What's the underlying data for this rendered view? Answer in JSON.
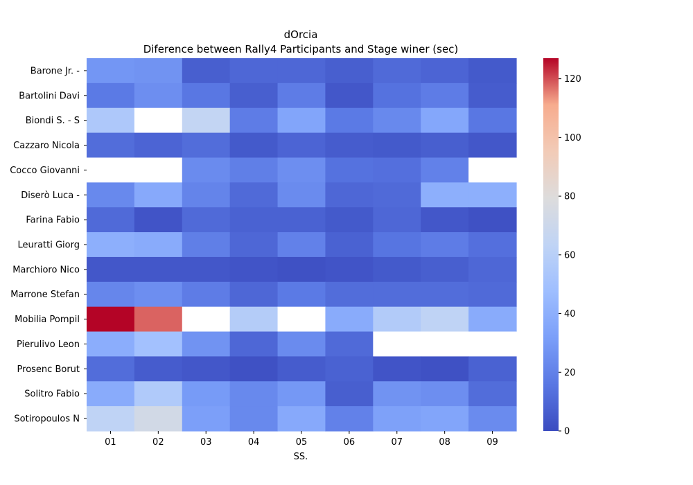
{
  "chart_data": {
    "type": "heatmap",
    "title": "dOrcia",
    "subtitle": "Diference between Rally4 Participants and Stage winer (sec)",
    "xlabel": "SS.",
    "ylabel": "",
    "columns": [
      "01",
      "02",
      "03",
      "04",
      "05",
      "06",
      "07",
      "08",
      "09"
    ],
    "rows": [
      "Barone Jr.  -",
      "Bartolini Davi",
      "Biondi S.  - S",
      "Cazzaro Nicola",
      "Cocco Giovanni",
      "Diserò Luca  -",
      "Farina Fabio  ",
      "Leuratti Giorg",
      "Marchioro Nico",
      "Marrone Stefan",
      "Mobilia Pompil",
      "Pierulivo Leon",
      "Prosenc Borut ",
      "Solitro Fabio ",
      "Sotiropoulos N"
    ],
    "values": [
      [
        28,
        27,
        7,
        10,
        10,
        7,
        11,
        9,
        5
      ],
      [
        17,
        25,
        16,
        7,
        18,
        4,
        14,
        18,
        6
      ],
      [
        55,
        null,
        65,
        18,
        35,
        17,
        23,
        36,
        16
      ],
      [
        12,
        9,
        12,
        5,
        9,
        6,
        5,
        7,
        4
      ],
      [
        null,
        null,
        24,
        19,
        25,
        14,
        13,
        20,
        null
      ],
      [
        23,
        37,
        21,
        11,
        24,
        10,
        11,
        40,
        40
      ],
      [
        11,
        3,
        11,
        8,
        8,
        5,
        10,
        4,
        2
      ],
      [
        40,
        38,
        19,
        10,
        20,
        8,
        15,
        18,
        13
      ],
      [
        4,
        4,
        4,
        3,
        2,
        3,
        5,
        7,
        10
      ],
      [
        22,
        25,
        18,
        10,
        17,
        12,
        12,
        12,
        11
      ],
      [
        127,
        118,
        null,
        58,
        null,
        38,
        57,
        63,
        38
      ],
      [
        39,
        50,
        27,
        10,
        24,
        11,
        null,
        null,
        null
      ],
      [
        12,
        6,
        4,
        2,
        6,
        8,
        3,
        2,
        8
      ],
      [
        38,
        56,
        30,
        23,
        29,
        7,
        27,
        25,
        12
      ],
      [
        63,
        73,
        32,
        23,
        37,
        20,
        33,
        35,
        24
      ]
    ],
    "colorbar": {
      "vmin": 0,
      "vmax": 127,
      "ticks": [
        "0",
        "20",
        "40",
        "60",
        "80",
        "100",
        "120"
      ],
      "tick_values": [
        0,
        20,
        40,
        60,
        80,
        100,
        120
      ],
      "colormap": "coolwarm"
    },
    "missing_color": "#ffffff",
    "grid": false
  }
}
